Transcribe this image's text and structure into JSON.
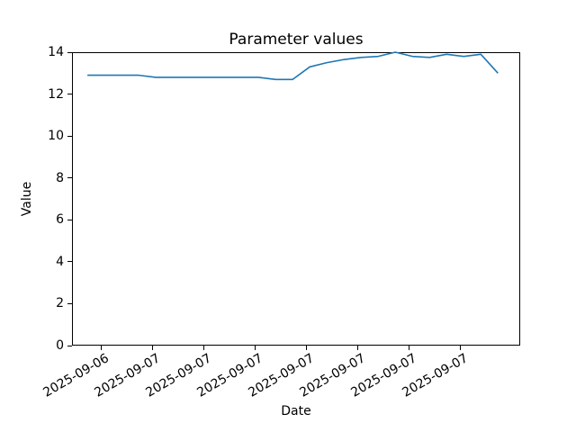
{
  "figure": {
    "background_color": "#ffffff",
    "axes_border_color": "#000000"
  },
  "chart_data": {
    "type": "line",
    "title": "Parameter values",
    "xlabel": "Date",
    "ylabel": "Value",
    "grid": false,
    "legend": null,
    "background_color": "#ffffff",
    "line_color": "#1f77b4",
    "ylim": [
      0,
      14
    ],
    "yticks": [
      0,
      2,
      4,
      6,
      8,
      10,
      12,
      14
    ],
    "xlim_hours": [
      -0.9,
      25.3
    ],
    "xticks": {
      "rotation_deg": 30,
      "positions_hours": [
        0.8,
        3.8,
        6.8,
        9.8,
        12.8,
        15.8,
        18.8,
        21.8
      ],
      "labels": [
        "2025-09-06",
        "2025-09-07",
        "2025-09-07",
        "2025-09-07",
        "2025-09-07",
        "2025-09-07",
        "2025-09-07",
        "2025-09-07"
      ]
    },
    "series": [
      {
        "name": "Parameter values",
        "color": "#1f77b4",
        "x_hours": [
          0,
          1,
          2,
          3,
          4,
          5,
          6,
          7,
          8,
          9,
          10,
          11,
          12,
          13,
          14,
          15,
          16,
          17,
          18,
          19,
          20,
          21,
          22,
          23,
          24
        ],
        "values": [
          12.9,
          12.9,
          12.9,
          12.9,
          12.8,
          12.8,
          12.8,
          12.8,
          12.8,
          12.8,
          12.8,
          12.7,
          12.7,
          13.3,
          13.5,
          13.65,
          13.75,
          13.8,
          14.0,
          13.8,
          13.75,
          13.9,
          13.8,
          13.9,
          13.0
        ]
      }
    ]
  }
}
